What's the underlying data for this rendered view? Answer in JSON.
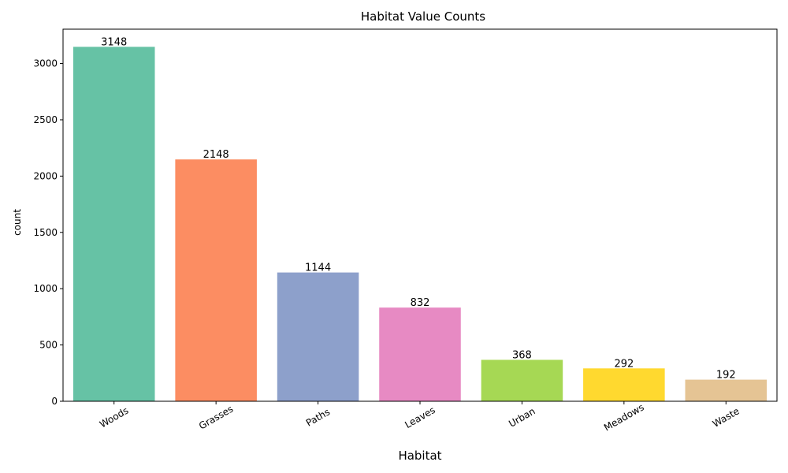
{
  "chart_data": {
    "type": "bar",
    "title": "Habitat Value Counts",
    "xlabel": "Habitat",
    "ylabel": "count",
    "categories": [
      "Woods",
      "Grasses",
      "Paths",
      "Leaves",
      "Urban",
      "Meadows",
      "Waste"
    ],
    "values": [
      3148,
      2148,
      1144,
      832,
      368,
      292,
      192
    ],
    "data_labels": [
      "3148",
      "2148",
      "1144",
      "832",
      "368",
      "292",
      "192"
    ],
    "colors": [
      "#66c2a5",
      "#fc8d62",
      "#8da0cb",
      "#e78ac3",
      "#a6d854",
      "#ffd92f",
      "#e5c494"
    ],
    "ylim": [
      0,
      3305
    ],
    "yticks": [
      0,
      500,
      1000,
      1500,
      2000,
      2500,
      3000
    ],
    "grid": false,
    "legend": "none"
  }
}
